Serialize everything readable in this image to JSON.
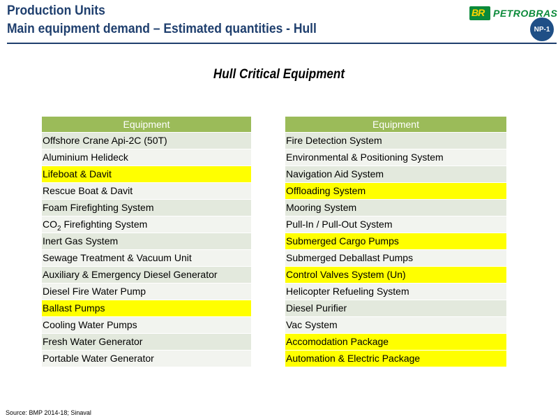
{
  "header": {
    "title_line1": "Production Units",
    "title_line2": "Main equipment demand – Estimated quantities - Hull",
    "logo_br": "BR",
    "logo_name": "PETROBRAS",
    "badge": "NP-1"
  },
  "subtitle": "Hull Critical Equipment",
  "left_table": {
    "header": "Equipment",
    "rows": [
      {
        "label": "Offshore Crane Api-2C (50T)",
        "highlight": false
      },
      {
        "label": "Aluminium Helideck",
        "highlight": false
      },
      {
        "label": "Lifeboat & Davit",
        "highlight": true
      },
      {
        "label": "Rescue Boat & Davit",
        "highlight": false
      },
      {
        "label": "Foam Firefighting System",
        "highlight": false
      },
      {
        "label": "CO",
        "sub": "2",
        "suffix": " Firefighting System",
        "highlight": false
      },
      {
        "label": "Inert Gas System",
        "highlight": false
      },
      {
        "label": "Sewage Treatment & Vacuum Unit",
        "highlight": false
      },
      {
        "label": "Auxiliary & Emergency Diesel Generator",
        "highlight": false
      },
      {
        "label": "Diesel Fire Water Pump",
        "highlight": false
      },
      {
        "label": "Ballast Pumps",
        "highlight": true
      },
      {
        "label": "Cooling Water Pumps",
        "highlight": false
      },
      {
        "label": "Fresh Water Generator",
        "highlight": false
      },
      {
        "label": "Portable Water Generator",
        "highlight": false
      }
    ]
  },
  "right_table": {
    "header": "Equipment",
    "rows": [
      {
        "label": "Fire Detection System",
        "highlight": false
      },
      {
        "label": "Environmental & Positioning System",
        "highlight": false
      },
      {
        "label": "Navigation Aid System",
        "highlight": false
      },
      {
        "label": "Offloading System",
        "highlight": true
      },
      {
        "label": "Mooring System",
        "highlight": false
      },
      {
        "label": "Pull-In / Pull-Out System",
        "highlight": false
      },
      {
        "label": "Submerged Cargo Pumps",
        "highlight": true
      },
      {
        "label": "Submerged Deballast Pumps",
        "highlight": false
      },
      {
        "label": "Control Valves System (Un)",
        "highlight": true
      },
      {
        "label": "Helicopter Refueling System",
        "highlight": false
      },
      {
        "label": "Diesel Purifier",
        "highlight": false
      },
      {
        "label": "Vac System",
        "highlight": false
      },
      {
        "label": "Accomodation Package",
        "highlight": true
      },
      {
        "label": "Automation & Electric Package",
        "highlight": true
      }
    ]
  },
  "source": "Source: BMP 2014-18; Sinaval",
  "colors": {
    "title": "#1f3f6e",
    "table_header": "#9bbb59",
    "row_odd": "#e3e9dd",
    "row_even": "#f2f4ef",
    "highlight": "#ffff00",
    "logo_green": "#0b8a3a",
    "logo_yellow": "#ffd400"
  }
}
